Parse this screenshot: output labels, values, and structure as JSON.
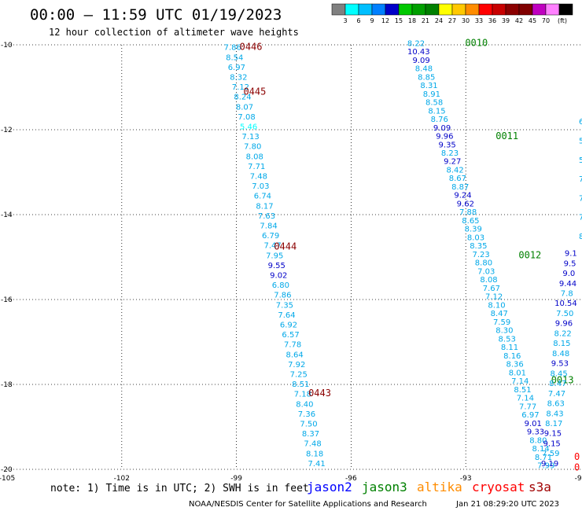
{
  "title": "00:00 – 11:59 UTC 01/19/2023",
  "subtitle": "12 hour collection of altimeter wave heights",
  "note": "note: 1) Time is in UTC; 2) SWH is in feet",
  "credit": "NOAA/NESDIS Center for Satellite Applications and Research",
  "generated": "Jan 21 08:29:20 UTC 2023",
  "colorbar": {
    "unit": "(ft)",
    "ticks": [
      "3",
      "6",
      "9",
      "12",
      "15",
      "18",
      "21",
      "24",
      "27",
      "30",
      "33",
      "36",
      "39",
      "42",
      "45",
      "70"
    ],
    "colors": [
      "#808080",
      "#00ffff",
      "#00bfff",
      "#0080ff",
      "#0000c8",
      "#00c800",
      "#00a000",
      "#008000",
      "#ffff00",
      "#ffc800",
      "#ff8c00",
      "#ff0000",
      "#c80000",
      "#8b0000",
      "#800000",
      "#c000c0",
      "#ff80ff",
      "#000000"
    ]
  },
  "legend": [
    {
      "name": "jason2",
      "color": "#0000ff"
    },
    {
      "name": "jason3",
      "color": "#008000"
    },
    {
      "name": "altika",
      "color": "#ff8c00"
    },
    {
      "name": "cryosat",
      "color": "#ff0000"
    },
    {
      "name": "s3a",
      "color": "#a00000"
    }
  ],
  "chart_data": {
    "type": "scatter",
    "xlim": [
      -105,
      -90
    ],
    "ylim": [
      -20,
      -10
    ],
    "x_ticks": [
      "-105",
      "-102",
      "-99",
      "-96",
      "-93",
      "-90"
    ],
    "y_ticks": [
      "-10",
      "-12",
      "-14",
      "-16",
      "-18",
      "-20"
    ],
    "grid": true,
    "tracks": [
      {
        "satellite": "s3a",
        "start": [
          -99.1,
          -10.05
        ],
        "end": [
          -96.9,
          -19.85
        ],
        "values": [
          "7.86",
          "8.54",
          "6.97",
          "8.32",
          "7.12",
          "8.24",
          "8.07",
          "7.08",
          "5.46",
          "7.13",
          "7.80",
          "8.08",
          "7.71",
          "7.48",
          "7.03",
          "6.74",
          "8.17",
          "7.63",
          "7.84",
          "6.79",
          "7.47",
          "7.95",
          "9.55",
          "9.02",
          "6.80",
          "7.86",
          "7.35",
          "7.64",
          "6.92",
          "6.57",
          "7.78",
          "8.64",
          "7.92",
          "7.25",
          "8.51",
          "7.18",
          "8.40",
          "7.36",
          "7.50",
          "8.37",
          "7.48",
          "8.18",
          "7.41"
        ],
        "time_labels": [
          {
            "text": "0446",
            "x": -99,
            "y": -10.05
          },
          {
            "text": "0445",
            "x": -98.9,
            "y": -11.1
          },
          {
            "text": "0444",
            "x": -98.1,
            "y": -14.75
          },
          {
            "text": "0443",
            "x": -97.2,
            "y": -18.2
          }
        ]
      },
      {
        "satellite": "jason3",
        "start": [
          -94.3,
          -9.95
        ],
        "end": [
          -90.9,
          -19.9
        ],
        "values": [
          "8.22",
          "10.43",
          "9.09",
          "8.48",
          "8.85",
          "8.31",
          "8.91",
          "8.58",
          "8.15",
          "8.76",
          "9.09",
          "9.96",
          "9.35",
          "8.23",
          "9.27",
          "8.42",
          "8.67",
          "8.87",
          "9.24",
          "9.62",
          "7.88",
          "8.65",
          "8.39",
          "8.03",
          "8.35",
          "7.23",
          "8.80",
          "7.03",
          "8.08",
          "7.67",
          "7.12",
          "8.10",
          "8.47",
          "7.59",
          "8.30",
          "8.53",
          "8.11",
          "8.16",
          "8.36",
          "8.01",
          "7.14",
          "8.51",
          "7.14",
          "7.77",
          "6.97",
          "9.01",
          "9.33",
          "8.80",
          "8.14",
          "8.71",
          "7.99"
        ],
        "time_labels": [
          {
            "text": "0010",
            "x": -93.1,
            "y": -9.95
          },
          {
            "text": "0011",
            "x": -92.3,
            "y": -12.15
          },
          {
            "text": "0012",
            "x": -91.7,
            "y": -14.95
          },
          {
            "text": "0013",
            "x": -90.85,
            "y": -17.9
          }
        ]
      },
      {
        "satellite": "jason3-edge",
        "values": [
          "9.1",
          "9.5",
          "9.0",
          "9.44",
          "7.8",
          "10.54",
          "7.50",
          "9.96",
          "8.22",
          "8.15",
          "8.48",
          "9.53",
          "8.45",
          "8.47",
          "7.47",
          "8.63",
          "8.43",
          "8.17",
          "9.15",
          "9.15",
          "7.59",
          "9.19"
        ],
        "edge_partial": [
          "6",
          "5",
          "5",
          "7",
          "7",
          "7",
          "8"
        ]
      },
      {
        "satellite": "cryosat",
        "values": [
          "0",
          "0"
        ]
      }
    ]
  }
}
